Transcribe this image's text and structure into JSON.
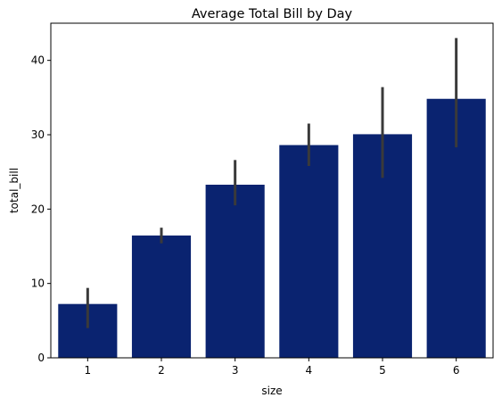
{
  "chart_data": {
    "type": "bar",
    "title": "Average Total Bill by Day",
    "xlabel": "size",
    "ylabel": "total_bill",
    "categories": [
      "1",
      "2",
      "3",
      "4",
      "5",
      "6"
    ],
    "values": [
      7.24,
      16.45,
      23.28,
      28.61,
      30.07,
      34.83
    ],
    "error_low": [
      4.0,
      15.4,
      20.5,
      25.8,
      24.2,
      28.3
    ],
    "error_high": [
      9.4,
      17.5,
      26.6,
      31.5,
      36.4,
      43.0
    ],
    "ylim": [
      0,
      45
    ],
    "yticks": [
      0,
      10,
      20,
      30,
      40
    ],
    "grid": false,
    "bar_color": "#0a2370",
    "error_color": "#3a3a3a"
  }
}
